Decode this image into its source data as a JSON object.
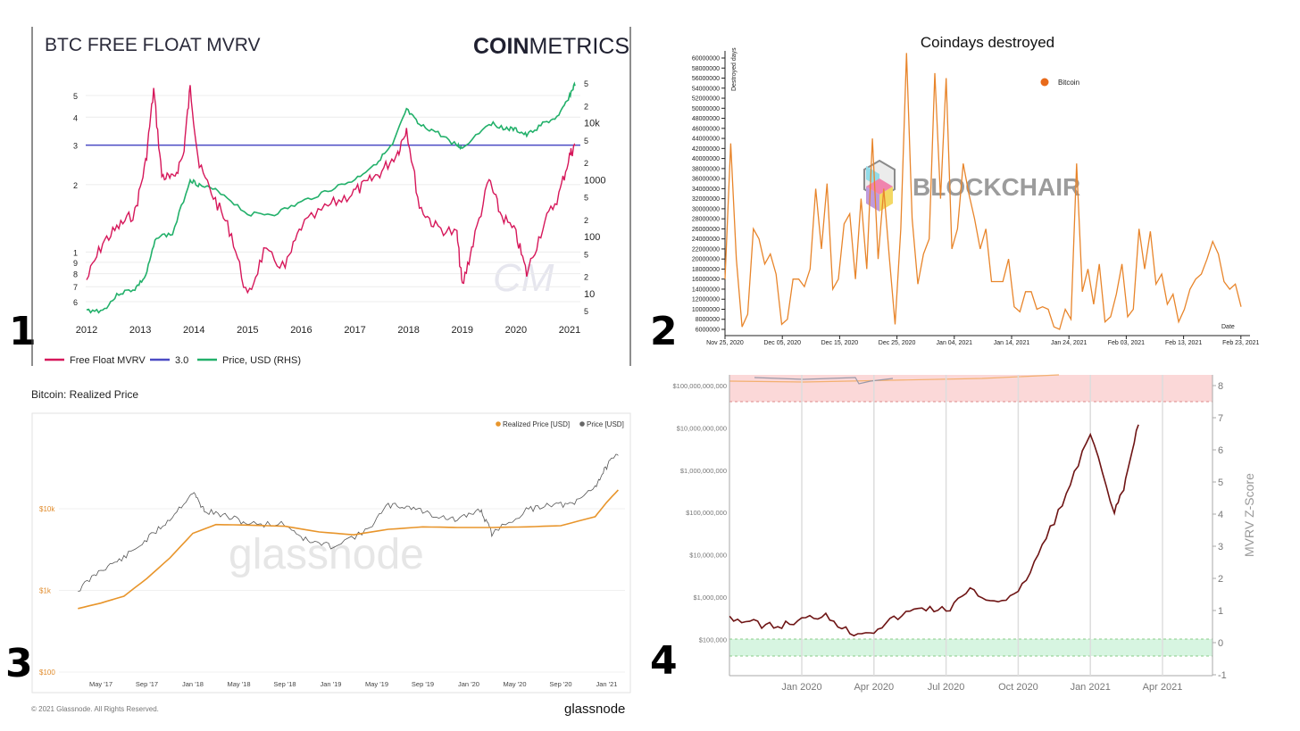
{
  "panel_numbers": [
    "1",
    "2",
    "3",
    "4"
  ],
  "chart_data": [
    {
      "type": "line",
      "title": "BTC FREE FLOAT MVRV",
      "brand": {
        "bold": "COIN",
        "light": "METRICS",
        "watermark": "CM"
      },
      "x_ticks": [
        "2012",
        "2013",
        "2014",
        "2015",
        "2016",
        "2017",
        "2018",
        "2019",
        "2020",
        "2021"
      ],
      "y_left_ticks": [
        "5",
        "4",
        "3",
        "2",
        "1",
        "9",
        "8",
        "7",
        "6"
      ],
      "y_left_tick_values": [
        5,
        4,
        3,
        2,
        1,
        0.9,
        0.8,
        0.7,
        0.6
      ],
      "y_right_ticks": [
        "5",
        "2",
        "10k",
        "5",
        "2",
        "1000",
        "5",
        "2",
        "100",
        "5",
        "2",
        "10",
        "5"
      ],
      "y_right_tick_values": [
        50000,
        20000,
        10000,
        5000,
        2000,
        1000,
        500,
        200,
        100,
        50,
        20,
        10,
        5
      ],
      "legend": [
        "Free Float MVRV",
        "3.0",
        "Price, USD (RHS)"
      ],
      "colors": [
        "#d6175a",
        "#4b4bc4",
        "#22b06a"
      ],
      "threshold": 3.0,
      "series": [
        {
          "name": "Free Float MVRV",
          "x": [
            2012.0,
            2012.3,
            2012.6,
            2012.9,
            2013.1,
            2013.25,
            2013.4,
            2013.6,
            2013.8,
            2013.93,
            2014.1,
            2014.4,
            2014.7,
            2015.0,
            2015.3,
            2015.7,
            2016.0,
            2016.5,
            2016.9,
            2017.2,
            2017.5,
            2017.8,
            2017.96,
            2018.2,
            2018.5,
            2018.9,
            2019.0,
            2019.2,
            2019.5,
            2019.7,
            2020.0,
            2020.2,
            2020.5,
            2020.8,
            2021.0,
            2021.1
          ],
          "values": [
            0.75,
            1.1,
            1.3,
            1.5,
            2.5,
            5.3,
            2.2,
            2.1,
            2.7,
            5.4,
            2.4,
            1.7,
            1.2,
            0.62,
            1.0,
            0.85,
            1.3,
            1.6,
            1.8,
            2.0,
            2.3,
            2.8,
            3.6,
            1.6,
            1.3,
            1.2,
            0.7,
            1.1,
            2.1,
            1.5,
            1.2,
            0.8,
            1.3,
            1.8,
            2.7,
            3.0
          ]
        },
        {
          "name": "Price, USD (RHS)",
          "x": [
            2012.0,
            2012.3,
            2012.6,
            2012.9,
            2013.1,
            2013.3,
            2013.6,
            2013.93,
            2014.1,
            2014.5,
            2015.0,
            2015.5,
            2016.0,
            2016.5,
            2017.0,
            2017.4,
            2017.7,
            2017.96,
            2018.2,
            2018.5,
            2018.9,
            2019.0,
            2019.5,
            2019.8,
            2020.0,
            2020.2,
            2020.5,
            2020.8,
            2021.0,
            2021.1
          ],
          "values": [
            5,
            5,
            10,
            12,
            20,
            100,
            110,
            1000,
            800,
            600,
            250,
            250,
            400,
            650,
            1000,
            2000,
            4000,
            17000,
            9000,
            7000,
            4000,
            3600,
            10000,
            8000,
            7500,
            6000,
            9500,
            13000,
            30000,
            48000
          ]
        }
      ]
    },
    {
      "type": "line",
      "title": "Coindays destroyed",
      "ylabel": "Destroyed days",
      "xlabel": "Date",
      "legend": [
        "Bitcoin"
      ],
      "watermark": "BLOCKCHAIR",
      "colors": [
        "#e8852b",
        "#e86a1a"
      ],
      "x_ticks": [
        "Nov 25, 2020",
        "Dec 05, 2020",
        "Dec 15, 2020",
        "Dec 25, 2020",
        "Jan 04, 2021",
        "Jan 14, 2021",
        "Jan 24, 2021",
        "Feb 03, 2021",
        "Feb 13, 2021",
        "Feb 23, 2021"
      ],
      "y_ticks": [
        "60000000",
        "58000000",
        "56000000",
        "54000000",
        "52000000",
        "50000000",
        "48000000",
        "46000000",
        "44000000",
        "42000000",
        "40000000",
        "38000000",
        "36000000",
        "34000000",
        "32000000",
        "30000000",
        "28000000",
        "26000000",
        "24000000",
        "22000000",
        "20000000",
        "18000000",
        "16000000",
        "14000000",
        "12000000",
        "10000000",
        "8000000",
        "6000000"
      ],
      "ylim": [
        6000000,
        60000000
      ],
      "series": [
        {
          "name": "Bitcoin",
          "x_days": [
            0,
            1,
            2,
            3,
            4,
            5,
            6,
            7,
            8,
            9,
            10,
            11,
            12,
            13,
            14,
            15,
            16,
            17,
            18,
            19,
            20,
            21,
            22,
            23,
            24,
            25,
            26,
            27,
            28,
            29,
            30,
            31,
            32,
            33,
            34,
            35,
            36,
            37,
            38,
            39,
            40,
            41,
            42,
            43,
            44,
            45,
            46,
            47,
            48,
            49,
            50,
            51,
            52,
            53,
            54,
            55,
            56,
            57,
            58,
            59,
            60,
            61,
            62,
            63,
            64,
            65,
            66,
            67,
            68,
            69,
            70,
            71,
            72,
            73,
            74,
            75,
            76,
            77,
            78,
            79,
            80,
            81,
            82,
            83,
            84,
            85,
            86,
            87,
            88,
            89,
            90,
            91
          ],
          "values": [
            16000000,
            43000000,
            20000000,
            6500000,
            9000000,
            26000000,
            24000000,
            19000000,
            21000000,
            17000000,
            7000000,
            8000000,
            16000000,
            16000000,
            14500000,
            18000000,
            34000000,
            22000000,
            35000000,
            14000000,
            16000000,
            27000000,
            29000000,
            16000000,
            32000000,
            18000000,
            44000000,
            20000000,
            34000000,
            20000000,
            7000000,
            26000000,
            61000000,
            28000000,
            15000000,
            21000000,
            24000000,
            57000000,
            32000000,
            56000000,
            22000000,
            26000000,
            39000000,
            33000000,
            28000000,
            22000000,
            26000000,
            15500000,
            15500000,
            15500000,
            20000000,
            10500000,
            9500000,
            13500000,
            13500000,
            10000000,
            10500000,
            10000000,
            6500000,
            6000000,
            10000000,
            8000000,
            39000000,
            13500000,
            18000000,
            11000000,
            19000000,
            7500000,
            8500000,
            13000000,
            19000000,
            8500000,
            10000000,
            26000000,
            18000000,
            25500000,
            15000000,
            17000000,
            11000000,
            13000000,
            7500000,
            10000000,
            14000000,
            16000000,
            17000000,
            20000000,
            23500000,
            21000000,
            15500000,
            14000000,
            15000000,
            10500000
          ]
        }
      ]
    },
    {
      "type": "line",
      "title": "Bitcoin: Realized Price",
      "legend": [
        "Realized Price [USD]",
        "Price [USD]"
      ],
      "colors": [
        "#e8952b",
        "#555555"
      ],
      "watermark": "glassnode",
      "footer": "© 2021 Glassnode. All Rights Reserved.",
      "footer_brand": "glassnode",
      "x_ticks": [
        "May '17",
        "Sep '17",
        "Jan '18",
        "May '18",
        "Sep '18",
        "Jan '19",
        "May '19",
        "Sep '19",
        "Jan '20",
        "May '20",
        "Sep '20",
        "Jan '21"
      ],
      "y_ticks": [
        "$10k",
        "$1k",
        "$100"
      ],
      "y_tick_values": [
        10000,
        1000,
        100
      ],
      "series": [
        {
          "name": "Realized Price [USD]",
          "x": [
            "2017-03",
            "2017-05",
            "2017-07",
            "2017-09",
            "2017-11",
            "2018-01",
            "2018-03",
            "2018-06",
            "2018-09",
            "2018-12",
            "2019-03",
            "2019-06",
            "2019-09",
            "2019-12",
            "2020-03",
            "2020-06",
            "2020-09",
            "2020-12",
            "2021-01",
            "2021-02"
          ],
          "values": [
            600,
            700,
            850,
            1400,
            2500,
            5000,
            6400,
            6300,
            6100,
            5200,
            4800,
            5600,
            6000,
            5900,
            5900,
            6000,
            6200,
            8000,
            12000,
            17000
          ]
        },
        {
          "name": "Price [USD]",
          "x": [
            "2017-03",
            "2017-05",
            "2017-07",
            "2017-09",
            "2017-11",
            "2018-01",
            "2018-02",
            "2018-04",
            "2018-06",
            "2018-09",
            "2018-11",
            "2019-01",
            "2019-04",
            "2019-06",
            "2019-08",
            "2019-10",
            "2019-12",
            "2020-02",
            "2020-03",
            "2020-06",
            "2020-08",
            "2020-10",
            "2020-12",
            "2021-01",
            "2021-02"
          ],
          "values": [
            1000,
            1800,
            2500,
            4200,
            7500,
            16000,
            9500,
            8000,
            6500,
            6500,
            4000,
            3500,
            5200,
            11000,
            10500,
            8300,
            7200,
            9800,
            5000,
            9500,
            11500,
            11000,
            19000,
            33000,
            48000
          ]
        }
      ]
    },
    {
      "type": "line",
      "ylabel": "MVRV Z-Score",
      "colors": [
        "#7a1a1a",
        "#f7b9b9",
        "#c9f2d6"
      ],
      "x_ticks": [
        "Jan 2020",
        "Apr 2020",
        "Jul 2020",
        "Oct 2020",
        "Jan 2021",
        "Apr 2021"
      ],
      "y_left_ticks": [
        "$100,000,000,000",
        "$10,000,000,000",
        "$1,000,000,000",
        "$100,000,000",
        "$10,000,000",
        "$1,000,000",
        "$100,000"
      ],
      "y_right_ticks": [
        "8",
        "7",
        "6",
        "5",
        "4",
        "3",
        "2",
        "1",
        "0",
        "-1"
      ],
      "ylim": [
        -1,
        8
      ],
      "series": [
        {
          "name": "MVRV Z-Score",
          "x": [
            "2019-10",
            "2019-11",
            "2019-12",
            "2020-01",
            "2020-02",
            "2020-03",
            "2020-04",
            "2020-05",
            "2020-06",
            "2020-07",
            "2020-08",
            "2020-09",
            "2020-10",
            "2020-11",
            "2020-12",
            "2021-01",
            "2021-02",
            "2021-02-15",
            "2021-03"
          ],
          "values": [
            0.8,
            0.6,
            0.5,
            0.7,
            0.9,
            0.3,
            0.4,
            0.8,
            1.1,
            1.0,
            1.6,
            1.3,
            1.5,
            3.0,
            4.6,
            6.5,
            4.0,
            5.0,
            6.9
          ]
        }
      ]
    }
  ]
}
